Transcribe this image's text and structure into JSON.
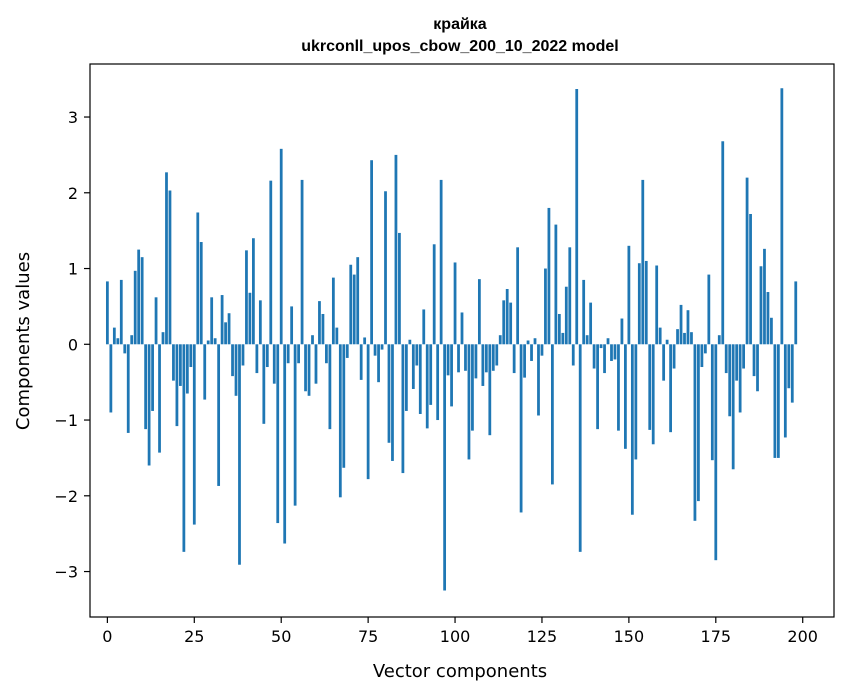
{
  "chart_data": {
    "type": "bar",
    "title": "крайка",
    "subtitle": "ukrconll_upos_cbow_200_10_2022 model",
    "xlabel": "Vector components",
    "ylabel": "Components values",
    "xlim": [
      -5,
      209
    ],
    "ylim": [
      -3.6,
      3.7
    ],
    "xticks": [
      0,
      25,
      50,
      75,
      100,
      125,
      150,
      175,
      200
    ],
    "yticks": [
      -3,
      -2,
      -1,
      0,
      1,
      2,
      3
    ],
    "ytick_labels": [
      "−3",
      "−2",
      "−1",
      "0",
      "1",
      "2",
      "3"
    ],
    "bar_color": "#1f77b4",
    "grid": false,
    "legend": "none",
    "values": [
      0.83,
      -0.9,
      0.22,
      0.08,
      0.85,
      -0.12,
      -1.17,
      0.12,
      0.97,
      1.25,
      1.15,
      -1.12,
      -1.6,
      -0.88,
      0.62,
      -1.43,
      0.16,
      2.27,
      2.03,
      -0.48,
      -1.08,
      -0.55,
      -2.74,
      -0.65,
      -0.3,
      -2.38,
      1.74,
      1.35,
      -0.73,
      0.05,
      0.62,
      0.08,
      -1.87,
      0.65,
      0.29,
      0.41,
      -0.42,
      -0.68,
      -2.91,
      -0.28,
      1.24,
      0.68,
      1.4,
      -0.38,
      0.58,
      -1.05,
      -0.3,
      2.16,
      -0.52,
      -2.36,
      2.58,
      -2.63,
      -0.25,
      0.5,
      -2.13,
      -0.25,
      2.17,
      -0.62,
      -0.68,
      0.12,
      -0.52,
      0.57,
      0.4,
      -0.25,
      -1.12,
      0.88,
      0.22,
      -2.02,
      -1.63,
      -0.18,
      1.05,
      0.92,
      1.15,
      -0.47,
      0.09,
      -1.78,
      2.43,
      -0.15,
      -0.5,
      -0.07,
      2.02,
      -1.3,
      -1.54,
      2.5,
      1.47,
      -1.7,
      -0.88,
      0.06,
      -0.59,
      -0.28,
      -0.92,
      0.46,
      -1.11,
      -0.8,
      1.32,
      -1.0,
      2.17,
      -3.25,
      -0.41,
      -0.82,
      1.08,
      -0.37,
      0.42,
      -0.35,
      -1.52,
      -1.14,
      -0.45,
      0.86,
      -0.55,
      -0.37,
      -1.2,
      -0.35,
      -0.28,
      0.12,
      0.58,
      0.73,
      0.55,
      -0.38,
      1.28,
      -2.22,
      -0.44,
      0.05,
      -0.22,
      0.08,
      -0.94,
      -0.15,
      1.0,
      1.8,
      -1.85,
      1.58,
      0.4,
      0.15,
      0.76,
      1.28,
      -0.28,
      3.37,
      -2.74,
      0.85,
      0.12,
      0.55,
      -0.32,
      -1.12,
      -0.05,
      -0.38,
      0.08,
      -0.22,
      -0.2,
      -1.14,
      0.34,
      -1.38,
      1.3,
      -2.25,
      -1.52,
      1.07,
      2.17,
      1.1,
      -1.13,
      -1.32,
      1.04,
      0.22,
      -0.48,
      0.06,
      -1.16,
      -0.32,
      0.2,
      0.52,
      0.15,
      0.45,
      0.16,
      -2.33,
      -2.07,
      -0.3,
      -0.12,
      0.92,
      -1.53,
      -2.85,
      0.12,
      2.68,
      -0.38,
      -0.95,
      -1.65,
      -0.48,
      -0.9,
      -0.32,
      2.2,
      1.72,
      -0.42,
      -0.62,
      1.03,
      1.26,
      0.69,
      0.35,
      -1.5,
      -1.5,
      3.38,
      -1.23,
      -0.58,
      -0.77,
      0.83
    ]
  }
}
